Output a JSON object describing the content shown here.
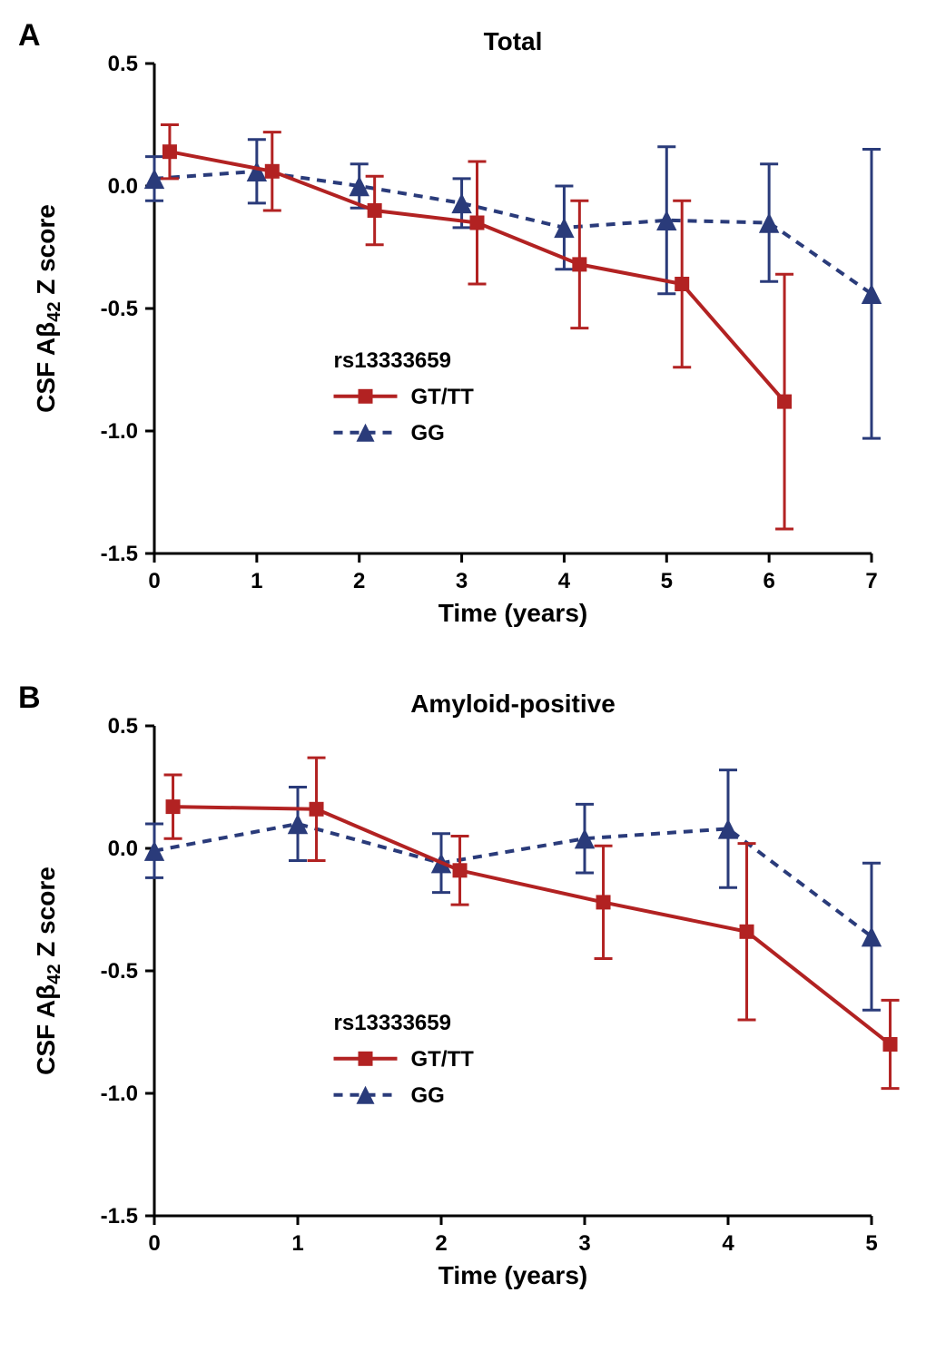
{
  "panelA": {
    "label": "A",
    "title": "Total",
    "xlabel": "Time (years)",
    "ylabel": "CSF Aβ42 Z score",
    "ylabel_parts": {
      "pre": "CSF Aβ",
      "sub": "42",
      "post": " Z score"
    },
    "xlim": [
      0,
      7
    ],
    "ylim": [
      -1.5,
      0.5
    ],
    "xticks": [
      0,
      1,
      2,
      3,
      4,
      5,
      6,
      7
    ],
    "yticks": [
      -1.5,
      -1.0,
      -0.5,
      0.0,
      0.5
    ],
    "ytick_labels": [
      "-1.5",
      "-1.0",
      "-0.5",
      "0.0",
      "0.5"
    ],
    "legend_title": "rs13333659",
    "legend_items": [
      {
        "label": "GT/TT",
        "marker": "square",
        "style": "solid"
      },
      {
        "label": "GG",
        "marker": "triangle",
        "style": "dash"
      }
    ],
    "series_gt": {
      "color": "#b22222",
      "x_offset": 0.15,
      "points": [
        {
          "x": 0,
          "y": 0.14,
          "err": 0.11
        },
        {
          "x": 1,
          "y": 0.06,
          "err": 0.16
        },
        {
          "x": 2,
          "y": -0.1,
          "err": 0.14
        },
        {
          "x": 3,
          "y": -0.15,
          "err": 0.25
        },
        {
          "x": 4,
          "y": -0.32,
          "err": 0.26
        },
        {
          "x": 5,
          "y": -0.4,
          "err": 0.34
        },
        {
          "x": 6,
          "y": -0.88,
          "err": 0.52
        }
      ]
    },
    "series_gg": {
      "color": "#2a3b7a",
      "x_offset": 0,
      "points": [
        {
          "x": 0,
          "y": 0.03,
          "err": 0.09
        },
        {
          "x": 1,
          "y": 0.06,
          "err": 0.13
        },
        {
          "x": 2,
          "y": 0.0,
          "err": 0.09
        },
        {
          "x": 3,
          "y": -0.07,
          "err": 0.1
        },
        {
          "x": 4,
          "y": -0.17,
          "err": 0.17
        },
        {
          "x": 5,
          "y": -0.14,
          "err": 0.3
        },
        {
          "x": 6,
          "y": -0.15,
          "err": 0.24
        },
        {
          "x": 7,
          "y": -0.44,
          "err": 0.59
        }
      ]
    },
    "title_fontsize": 28,
    "label_fontsize": 28,
    "tick_fontsize": 24,
    "marker_size": 16,
    "cap_width": 10,
    "background_color": "#ffffff"
  },
  "panelB": {
    "label": "B",
    "title": "Amyloid-positive",
    "xlabel": "Time (years)",
    "ylabel": "CSF Aβ42 Z score",
    "ylabel_parts": {
      "pre": "CSF Aβ",
      "sub": "42",
      "post": " Z score"
    },
    "xlim": [
      0,
      5
    ],
    "ylim": [
      -1.5,
      0.5
    ],
    "xticks": [
      0,
      1,
      2,
      3,
      4,
      5
    ],
    "yticks": [
      -1.5,
      -1.0,
      -0.5,
      0.0,
      0.5
    ],
    "ytick_labels": [
      "-1.5",
      "-1.0",
      "-0.5",
      "0.0",
      "0.5"
    ],
    "legend_title": "rs13333659",
    "legend_items": [
      {
        "label": "GT/TT",
        "marker": "square",
        "style": "solid"
      },
      {
        "label": "GG",
        "marker": "triangle",
        "style": "dash"
      }
    ],
    "series_gt": {
      "color": "#b22222",
      "x_offset": 0.13,
      "points": [
        {
          "x": 0,
          "y": 0.17,
          "err": 0.13
        },
        {
          "x": 1,
          "y": 0.16,
          "err": 0.21
        },
        {
          "x": 2,
          "y": -0.09,
          "err": 0.14
        },
        {
          "x": 3,
          "y": -0.22,
          "err": 0.23
        },
        {
          "x": 4,
          "y": -0.34,
          "err": 0.36
        },
        {
          "x": 5,
          "y": -0.8,
          "err": 0.18
        }
      ]
    },
    "series_gg": {
      "color": "#2a3b7a",
      "x_offset": 0,
      "points": [
        {
          "x": 0,
          "y": -0.01,
          "err": 0.11
        },
        {
          "x": 1,
          "y": 0.1,
          "err": 0.15
        },
        {
          "x": 2,
          "y": -0.06,
          "err": 0.12
        },
        {
          "x": 3,
          "y": 0.04,
          "err": 0.14
        },
        {
          "x": 4,
          "y": 0.08,
          "err": 0.24
        },
        {
          "x": 5,
          "y": -0.36,
          "err": 0.3
        }
      ]
    },
    "title_fontsize": 28,
    "label_fontsize": 28,
    "tick_fontsize": 24,
    "marker_size": 16,
    "cap_width": 10,
    "background_color": "#ffffff"
  }
}
